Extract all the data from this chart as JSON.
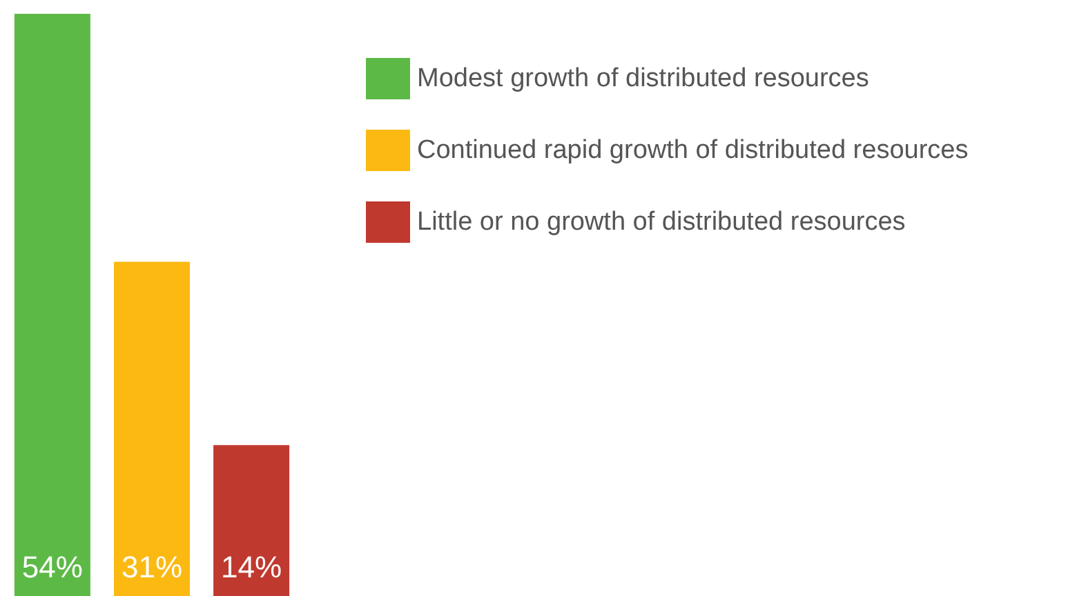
{
  "chart_data": {
    "type": "bar",
    "categories": [
      null
    ],
    "series": [
      {
        "name": "Modest growth of distributed resources",
        "color": "#5cb946",
        "values": [
          54
        ],
        "value_labels": [
          "54%"
        ]
      },
      {
        "name": "Continued rapid growth of distributed resources",
        "color": "#fbb912",
        "values": [
          31
        ],
        "value_labels": [
          "31%"
        ]
      },
      {
        "name": "Little or no growth of distributed resources",
        "color": "#c0392f",
        "values": [
          14
        ],
        "value_labels": [
          "14%"
        ]
      }
    ],
    "legend": "top right"
  }
}
